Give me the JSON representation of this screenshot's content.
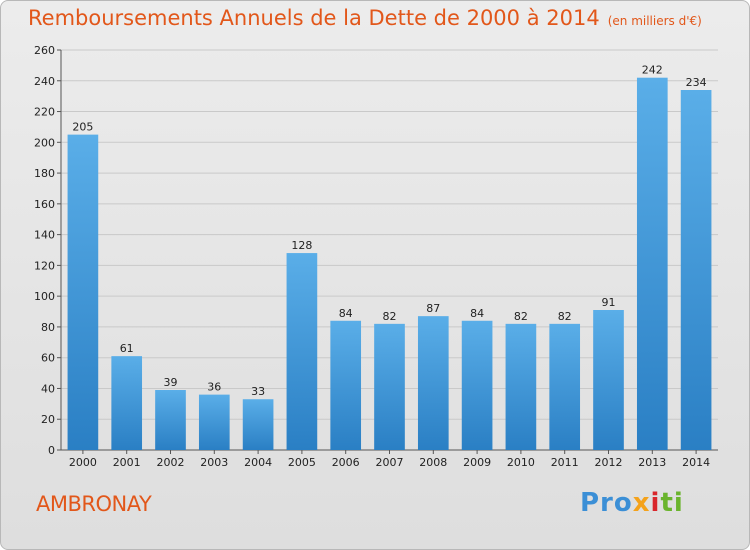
{
  "chart_data": {
    "type": "bar",
    "title": "Remboursements Annuels de la Dette de 2000 à 2014",
    "unit": "(en milliers d'€)",
    "categories": [
      "2000",
      "2001",
      "2002",
      "2003",
      "2004",
      "2005",
      "2006",
      "2007",
      "2008",
      "2009",
      "2010",
      "2011",
      "2012",
      "2013",
      "2014"
    ],
    "values": [
      205,
      61,
      39,
      36,
      33,
      128,
      84,
      82,
      87,
      84,
      82,
      82,
      91,
      242,
      234
    ],
    "ylim": [
      0,
      260
    ],
    "yticks": [
      0,
      20,
      40,
      60,
      80,
      100,
      120,
      140,
      160,
      180,
      200,
      220,
      240,
      260
    ],
    "grid": true,
    "bar_color": "#3d97dc"
  },
  "commune": "AMBRONAY",
  "logo": {
    "p1": "Pro",
    "p2": "x",
    "p3": "i",
    "p4": "ti"
  }
}
